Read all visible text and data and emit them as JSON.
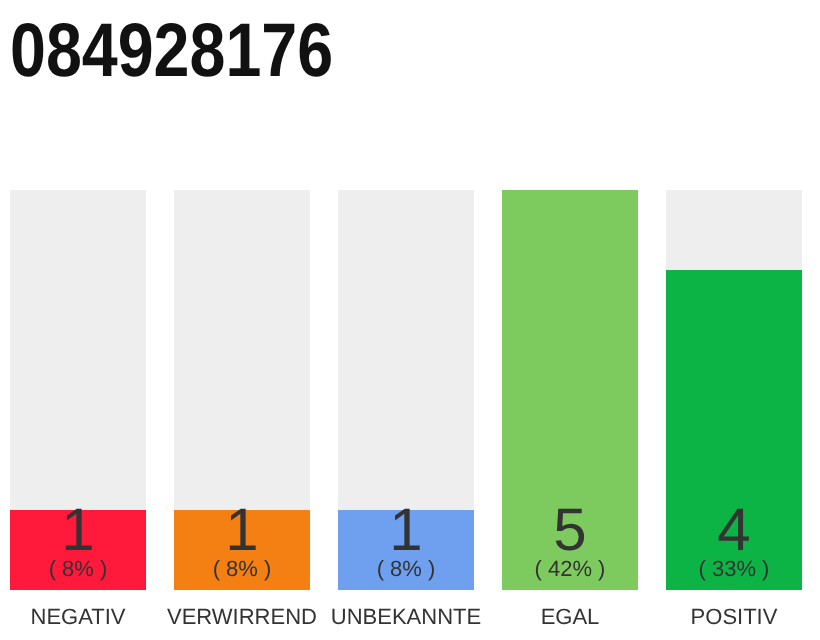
{
  "chart_data": {
    "type": "bar",
    "title": "084928176",
    "categories": [
      "NEGATIV",
      "VERWIRREND",
      "UNBEKANNTE",
      "EGAL",
      "POSITIV"
    ],
    "values": [
      1,
      1,
      1,
      5,
      4
    ],
    "colors": [
      "#ff1a3c",
      "#f47f12",
      "#6fa0f0",
      "#7dcb5f",
      "#0bb444"
    ],
    "value_labels": [
      "1 ( 8% )",
      "1 ( 8% )",
      "1 ( 8% )",
      "5 ( 42% )",
      "4 ( 33% )"
    ]
  }
}
